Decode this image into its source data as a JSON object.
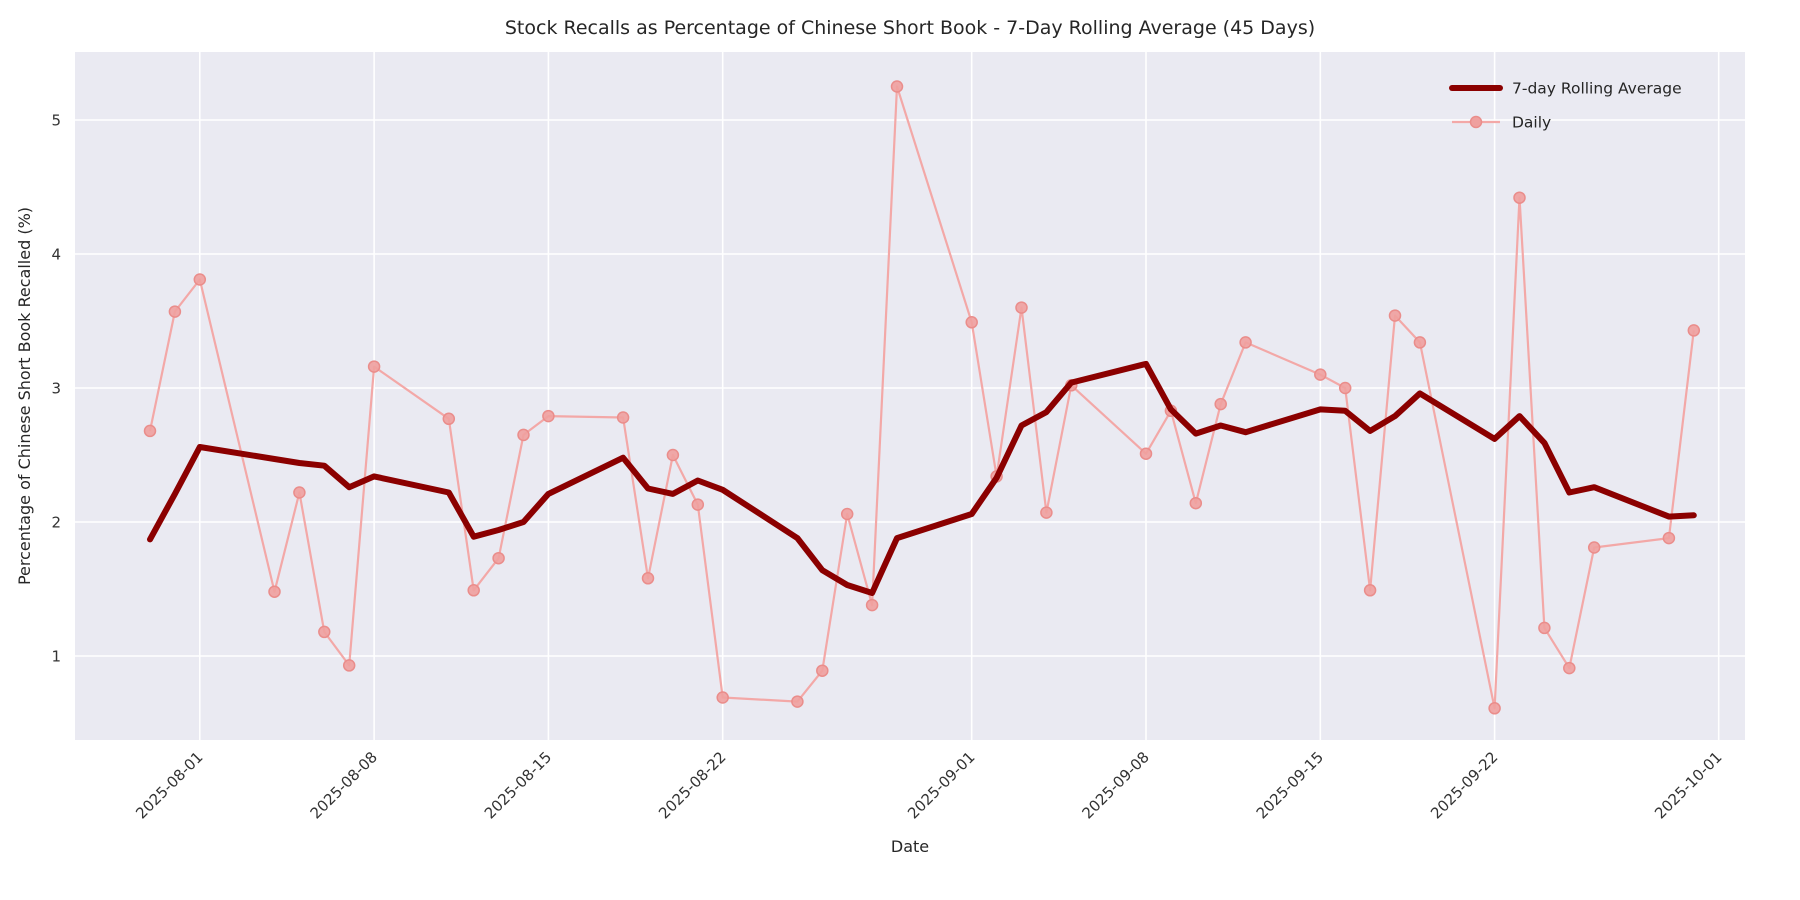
{
  "title": "Stock Recalls as Percentage of Chinese Short Book - 7-Day Rolling Average (45 Days)",
  "axes": {
    "xlabel": "Date",
    "ylabel": "Percentage of Chinese Short Book Recalled (%)",
    "yticks": [
      1,
      2,
      3,
      4,
      5
    ],
    "xticks": [
      "2025-08-01",
      "2025-08-08",
      "2025-08-15",
      "2025-08-22",
      "2025-09-01",
      "2025-09-08",
      "2025-09-15",
      "2025-09-22",
      "2025-10-01"
    ]
  },
  "legend": {
    "items": [
      {
        "label": "7-day Rolling Average"
      },
      {
        "label": "Daily"
      }
    ]
  },
  "colors": {
    "rolling_line": "#8b0000",
    "daily_line": "#f3a8a7",
    "daily_marker_fill": "#efA09f",
    "daily_marker_edge": "#ea8d8b",
    "plot_background": "#eaeaf2",
    "grid": "#ffffff",
    "text": "#262626",
    "tick_text": "#333333"
  },
  "chart_data": {
    "type": "line",
    "title": "Stock Recalls as Percentage of Chinese Short Book - 7-Day Rolling Average (45 Days)",
    "xlabel": "Date",
    "ylabel": "Percentage of Chinese Short Book Recalled (%)",
    "grid": true,
    "legend_position": "upper right",
    "ylim": [
      0.4,
      5.5
    ],
    "x": [
      "2025-07-30",
      "2025-07-31",
      "2025-08-01",
      "2025-08-04",
      "2025-08-05",
      "2025-08-06",
      "2025-08-07",
      "2025-08-08",
      "2025-08-11",
      "2025-08-12",
      "2025-08-13",
      "2025-08-14",
      "2025-08-15",
      "2025-08-18",
      "2025-08-19",
      "2025-08-20",
      "2025-08-21",
      "2025-08-22",
      "2025-08-25",
      "2025-08-26",
      "2025-08-27",
      "2025-08-28",
      "2025-08-29",
      "2025-09-01",
      "2025-09-02",
      "2025-09-03",
      "2025-09-04",
      "2025-09-05",
      "2025-09-08",
      "2025-09-09",
      "2025-09-10",
      "2025-09-11",
      "2025-09-12",
      "2025-09-15",
      "2025-09-16",
      "2025-09-17",
      "2025-09-18",
      "2025-09-19",
      "2025-09-22",
      "2025-09-23",
      "2025-09-24",
      "2025-09-25",
      "2025-09-26",
      "2025-09-29",
      "2025-09-30"
    ],
    "series": [
      {
        "name": "7-day Rolling Average",
        "style": "thick",
        "marker": false,
        "values": [
          1.87,
          2.21,
          2.56,
          2.47,
          2.44,
          2.42,
          2.26,
          2.34,
          2.22,
          1.89,
          1.94,
          2.0,
          2.21,
          2.48,
          2.25,
          2.21,
          2.31,
          2.24,
          1.88,
          1.64,
          1.53,
          1.47,
          1.88,
          2.06,
          2.33,
          2.72,
          2.82,
          3.04,
          3.18,
          2.84,
          2.66,
          2.72,
          2.67,
          2.84,
          2.83,
          2.68,
          2.79,
          2.96,
          2.62,
          2.79,
          2.59,
          2.22,
          2.26,
          2.04,
          2.05
        ]
      },
      {
        "name": "Daily",
        "style": "thin",
        "marker": true,
        "values": [
          2.68,
          3.57,
          3.81,
          1.48,
          2.22,
          1.18,
          0.93,
          3.16,
          2.77,
          1.49,
          1.73,
          2.65,
          2.79,
          2.78,
          1.58,
          2.5,
          2.13,
          0.69,
          0.66,
          0.89,
          2.06,
          1.38,
          5.25,
          3.49,
          2.34,
          3.6,
          2.07,
          3.02,
          2.51,
          2.83,
          2.14,
          2.88,
          3.34,
          3.1,
          3.0,
          1.49,
          3.54,
          3.34,
          0.61,
          4.42,
          1.21,
          0.91,
          1.81,
          1.88,
          3.43
        ]
      }
    ]
  }
}
